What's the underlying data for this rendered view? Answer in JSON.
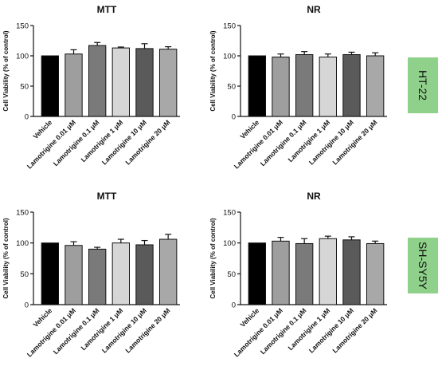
{
  "chart_data": [
    {
      "type": "bar",
      "title": "MTT",
      "ylabel": "Cell Viability (% of control)",
      "ylim": [
        0,
        150
      ],
      "yticks": [
        0,
        50,
        100,
        150
      ],
      "categories": [
        "Vehicle",
        "Lamotrigine 0.01 μM",
        "Lamotrigine 0.1 μM",
        "Lamotrigine 1 μM",
        "Lamotrigine 10 μM",
        "Lamotrigine 20 μM"
      ],
      "values": [
        100,
        103,
        117,
        113,
        112,
        111
      ],
      "errors": [
        0,
        7,
        5,
        1.5,
        8,
        4
      ],
      "bar_colors": [
        "#000000",
        "#9e9e9e",
        "#7a7a7a",
        "#d6d6d6",
        "#5a5a5a",
        "#a8a8a8"
      ]
    },
    {
      "type": "bar",
      "title": "NR",
      "ylabel": "Cell Viability (% of control)",
      "ylim": [
        0,
        150
      ],
      "yticks": [
        0,
        50,
        100,
        150
      ],
      "categories": [
        "Vehicle",
        "Lamotrigine 0.01 μM",
        "Lamotrigine 0.1 μM",
        "Lamotrigine 1 μM",
        "Lamotrigine 10 μM",
        "Lamotrigine 20 μM"
      ],
      "values": [
        100,
        98,
        102,
        98,
        102,
        100
      ],
      "errors": [
        0,
        5,
        5,
        5,
        4,
        5
      ],
      "bar_colors": [
        "#000000",
        "#9e9e9e",
        "#7a7a7a",
        "#d6d6d6",
        "#5a5a5a",
        "#a8a8a8"
      ]
    },
    {
      "type": "bar",
      "title": "MTT",
      "ylabel": "Cell Viability (% of control)",
      "ylim": [
        0,
        150
      ],
      "yticks": [
        0,
        50,
        100,
        150
      ],
      "categories": [
        "Vehicle",
        "Lamotrigine 0.01 μM",
        "Lamotrigine 0.1 μM",
        "Lamotrigine 1 μM",
        "Lamotrigine 10 μM",
        "Lamotrigine 20 μM"
      ],
      "values": [
        100,
        96,
        90,
        100,
        97,
        106
      ],
      "errors": [
        0,
        6,
        3,
        6,
        7,
        8
      ],
      "bar_colors": [
        "#000000",
        "#9e9e9e",
        "#7a7a7a",
        "#d6d6d6",
        "#5a5a5a",
        "#a8a8a8"
      ]
    },
    {
      "type": "bar",
      "title": "NR",
      "ylabel": "Cell Viability (% of control)",
      "ylim": [
        0,
        150
      ],
      "yticks": [
        0,
        50,
        100,
        150
      ],
      "categories": [
        "Vehicle",
        "Lamotrigine 0.01 μM",
        "Lamotrigine 0.1 μM",
        "Lamotrigine 1 μM",
        "Lamotrigine 10 μM",
        "Lamotrigine 20 μM"
      ],
      "values": [
        100,
        103,
        99,
        107,
        105,
        99
      ],
      "errors": [
        0,
        6,
        8,
        4,
        5,
        4
      ],
      "bar_colors": [
        "#000000",
        "#9e9e9e",
        "#7a7a7a",
        "#d6d6d6",
        "#5a5a5a",
        "#a8a8a8"
      ]
    }
  ],
  "row_labels": [
    "HT-22",
    "SH-SY5Y"
  ],
  "tag_color": "#8fd18a"
}
